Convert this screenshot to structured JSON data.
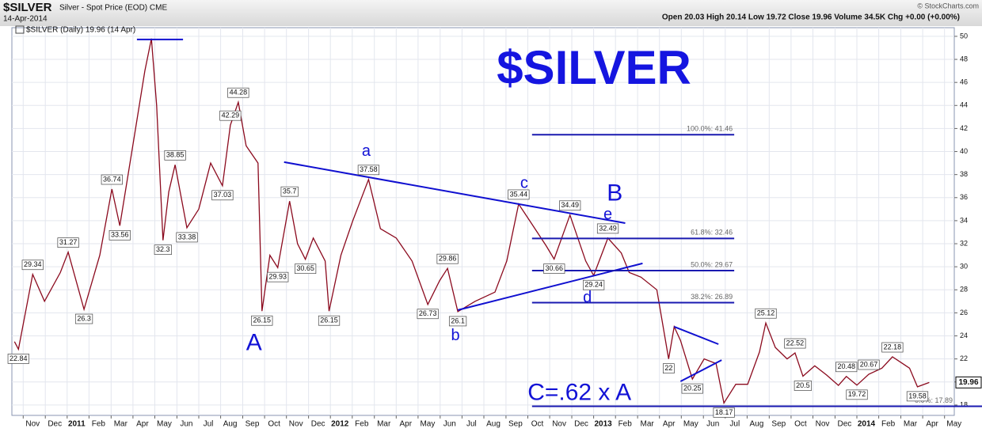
{
  "header": {
    "symbol": "$SILVER",
    "name": "Silver - Spot Price (EOD) CME",
    "date": "14-Apr-2014",
    "quote": "Open 20.03 High 20.14 Low 19.72 Close 19.96 Volume 34.5K Chg +0.00 (+0.00%)",
    "credit": "© StockCharts.com"
  },
  "chart_data": {
    "type": "line",
    "title": "$SILVER",
    "legend": "$SILVER (Daily) 19.96 (14 Apr)",
    "last_price": 19.96,
    "grid": true,
    "xlim": [
      2010.79,
      2014.37
    ],
    "ylim": [
      17.1,
      50.75
    ],
    "yticks": [
      18,
      20,
      22,
      24,
      26,
      28,
      30,
      32,
      34,
      36,
      38,
      40,
      42,
      44,
      46,
      48,
      50
    ],
    "xticks": [
      {
        "value": 2010.833,
        "label": "Nov"
      },
      {
        "value": 2010.917,
        "label": "Dec"
      },
      2011,
      {
        "value": 2011.083,
        "label": "Feb"
      },
      {
        "value": 2011.167,
        "label": "Mar"
      },
      {
        "value": 2011.25,
        "label": "Apr"
      },
      {
        "value": 2011.333,
        "label": "May"
      },
      {
        "value": 2011.417,
        "label": "Jun"
      },
      {
        "value": 2011.5,
        "label": "Jul"
      },
      {
        "value": 2011.583,
        "label": "Aug"
      },
      {
        "value": 2011.667,
        "label": "Sep"
      },
      {
        "value": 2011.75,
        "label": "Oct"
      },
      {
        "value": 2011.833,
        "label": "Nov"
      },
      {
        "value": 2011.917,
        "label": "Dec"
      },
      2012,
      {
        "value": 2012.083,
        "label": "Feb"
      },
      {
        "value": 2012.167,
        "label": "Mar"
      },
      {
        "value": 2012.25,
        "label": "Apr"
      },
      {
        "value": 2012.333,
        "label": "May"
      },
      {
        "value": 2012.417,
        "label": "Jun"
      },
      {
        "value": 2012.5,
        "label": "Jul"
      },
      {
        "value": 2012.583,
        "label": "Aug"
      },
      {
        "value": 2012.667,
        "label": "Sep"
      },
      {
        "value": 2012.75,
        "label": "Oct"
      },
      {
        "value": 2012.833,
        "label": "Nov"
      },
      {
        "value": 2012.917,
        "label": "Dec"
      },
      2013,
      {
        "value": 2013.083,
        "label": "Feb"
      },
      {
        "value": 2013.167,
        "label": "Mar"
      },
      {
        "value": 2013.25,
        "label": "Apr"
      },
      {
        "value": 2013.333,
        "label": "May"
      },
      {
        "value": 2013.417,
        "label": "Jun"
      },
      {
        "value": 2013.5,
        "label": "Jul"
      },
      {
        "value": 2013.583,
        "label": "Aug"
      },
      {
        "value": 2013.667,
        "label": "Sep"
      },
      {
        "value": 2013.75,
        "label": "Oct"
      },
      {
        "value": 2013.833,
        "label": "Nov"
      },
      {
        "value": 2013.917,
        "label": "Dec"
      },
      2014,
      {
        "value": 2014.083,
        "label": "Feb"
      },
      {
        "value": 2014.167,
        "label": "Mar"
      },
      {
        "value": 2014.25,
        "label": "Apr"
      },
      {
        "value": 2014.333,
        "label": "May"
      }
    ],
    "series": [
      {
        "name": "$SILVER",
        "color": "#8b0a1e",
        "x": [
          2010.8,
          2010.815,
          2010.869,
          2010.914,
          2010.974,
          2011.004,
          2011.064,
          2011.124,
          2011.17,
          2011.2,
          2011.26,
          2011.295,
          2011.32,
          2011.34,
          2011.364,
          2011.386,
          2011.41,
          2011.455,
          2011.5,
          2011.545,
          2011.59,
          2011.62,
          2011.65,
          2011.68,
          2011.725,
          2011.74,
          2011.77,
          2011.8,
          2011.845,
          2011.875,
          2011.905,
          2011.935,
          2011.98,
          2011.995,
          2012.04,
          2012.085,
          2012.145,
          2012.19,
          2012.25,
          2012.31,
          2012.37,
          2012.415,
          2012.445,
          2012.484,
          2012.55,
          2012.625,
          2012.67,
          2012.715,
          2012.76,
          2012.82,
          2012.85,
          2012.91,
          2012.97,
          2013.0,
          2013.054,
          2013.105,
          2013.135,
          2013.18,
          2013.24,
          2013.285,
          2013.306,
          2013.33,
          2013.375,
          2013.42,
          2013.465,
          2013.495,
          2013.54,
          2013.585,
          2013.63,
          2013.654,
          2013.69,
          2013.735,
          2013.765,
          2013.795,
          2013.84,
          2013.885,
          2013.93,
          2013.96,
          2014.0,
          2014.045,
          2014.095,
          2014.135,
          2014.2,
          2014.23,
          2014.275
        ],
        "values": [
          23.5,
          22.84,
          29.34,
          27,
          29.5,
          31.27,
          26.3,
          31,
          36.74,
          33.56,
          42,
          47,
          49.8,
          44,
          32.3,
          36.5,
          38.85,
          33.38,
          35,
          39,
          37.03,
          42.29,
          44.28,
          40.5,
          39,
          26.15,
          31,
          29.93,
          35.7,
          32,
          30.65,
          32.5,
          30.5,
          26.15,
          31,
          34,
          37.58,
          33.3,
          32.5,
          30.5,
          26.73,
          28.8,
          29.86,
          26.1,
          27,
          27.8,
          30.5,
          35.44,
          33.9,
          31.8,
          30.66,
          34.49,
          30.5,
          29.24,
          32.49,
          31.2,
          29.5,
          29.1,
          28,
          22,
          24.8,
          23.6,
          20.25,
          22,
          21.6,
          18.17,
          19.8,
          19.8,
          22.6,
          25.12,
          23,
          22,
          22.52,
          20.5,
          21.4,
          20.6,
          19.7,
          20.48,
          19.72,
          20.67,
          21.2,
          22.18,
          21.2,
          19.58,
          19.96
        ]
      }
    ],
    "peak_labels": [
      {
        "x": 2010.869,
        "value": 29.34
      },
      {
        "x": 2011.004,
        "value": 31.27
      },
      {
        "x": 2011.17,
        "value": 36.74
      },
      {
        "x": 2011.41,
        "value": 38.85
      },
      {
        "x": 2011.62,
        "value": 42.29
      },
      {
        "x": 2011.65,
        "value": 44.28
      },
      {
        "x": 2011.845,
        "value": 35.7
      },
      {
        "x": 2012.145,
        "value": 37.58
      },
      {
        "x": 2012.445,
        "value": 29.86
      },
      {
        "x": 2012.715,
        "value": 35.44
      },
      {
        "x": 2012.91,
        "value": 34.49
      },
      {
        "x": 2013.054,
        "value": 32.49
      },
      {
        "x": 2013.654,
        "value": 25.12
      },
      {
        "x": 2013.765,
        "value": 22.52
      },
      {
        "x": 2013.96,
        "value": 20.48
      },
      {
        "x": 2014.045,
        "value": 20.67
      },
      {
        "x": 2014.135,
        "value": 22.18
      }
    ],
    "trough_labels": [
      {
        "x": 2010.815,
        "value": 22.84
      },
      {
        "x": 2011.064,
        "value": 26.3
      },
      {
        "x": 2011.2,
        "value": 33.56
      },
      {
        "x": 2011.364,
        "value": 32.3
      },
      {
        "x": 2011.455,
        "value": 33.38
      },
      {
        "x": 2011.59,
        "value": 37.03
      },
      {
        "x": 2011.74,
        "value": 26.15
      },
      {
        "x": 2011.8,
        "value": 29.93
      },
      {
        "x": 2011.905,
        "value": 30.65
      },
      {
        "x": 2011.995,
        "value": 26.15
      },
      {
        "x": 2012.37,
        "value": 26.73
      },
      {
        "x": 2012.484,
        "value": 26.1
      },
      {
        "x": 2012.85,
        "value": 30.66
      },
      {
        "x": 2013.0,
        "value": 29.24
      },
      {
        "x": 2013.285,
        "value": 22.0
      },
      {
        "x": 2013.375,
        "value": 20.25
      },
      {
        "x": 2013.495,
        "value": 18.17
      },
      {
        "x": 2013.795,
        "value": 20.5
      },
      {
        "x": 2014.0,
        "value": 19.72
      },
      {
        "x": 2014.23,
        "value": 19.58
      }
    ],
    "fib_levels": [
      {
        "label": "100.0%: 41.46",
        "value": 41.46,
        "x": [
          2012.766,
          2013.534
        ]
      },
      {
        "label": "61.8%: 32.46",
        "value": 32.46,
        "x": [
          2012.766,
          2013.534
        ]
      },
      {
        "label": "50.0%: 29.67",
        "value": 29.67,
        "x": [
          2012.766,
          2013.534
        ]
      },
      {
        "label": "38.2%: 26.89",
        "value": 26.89,
        "x": [
          2012.766,
          2013.534
        ]
      },
      {
        "label": "0.0%: 17.89",
        "value": 17.89,
        "x": [
          2012.766,
          2014.37
        ]
      }
    ],
    "trendlines": [
      {
        "x": [
          2011.824,
          2013.12
        ],
        "values": [
          39.08,
          33.79
        ]
      },
      {
        "x": [
          2012.484,
          2013.186
        ],
        "values": [
          26.24,
          30.29
        ]
      },
      {
        "x": [
          2013.306,
          2013.474
        ],
        "values": [
          24.8,
          23.28
        ]
      },
      {
        "x": [
          2013.33,
          2013.486
        ],
        "values": [
          20.05,
          21.9
        ]
      },
      {
        "x": [
          2011.265,
          2011.44
        ],
        "values": [
          49.73,
          49.73
        ]
      }
    ],
    "wave_labels_major": [
      {
        "text": "A",
        "x": 2011.71,
        "value": 23.3
      },
      {
        "text": "B",
        "x": 2013.08,
        "value": 36.3
      },
      {
        "text": "C=.62 x A",
        "x": 2012.946,
        "value": 19.0
      }
    ],
    "wave_labels_minor": [
      {
        "text": "a",
        "x": 2012.136,
        "value": 40.0
      },
      {
        "text": "b",
        "x": 2012.475,
        "value": 24.0
      },
      {
        "text": "c",
        "x": 2012.736,
        "value": 37.2
      },
      {
        "text": "d",
        "x": 2012.976,
        "value": 27.3
      },
      {
        "text": "e",
        "x": 2013.054,
        "value": 34.5
      }
    ]
  }
}
